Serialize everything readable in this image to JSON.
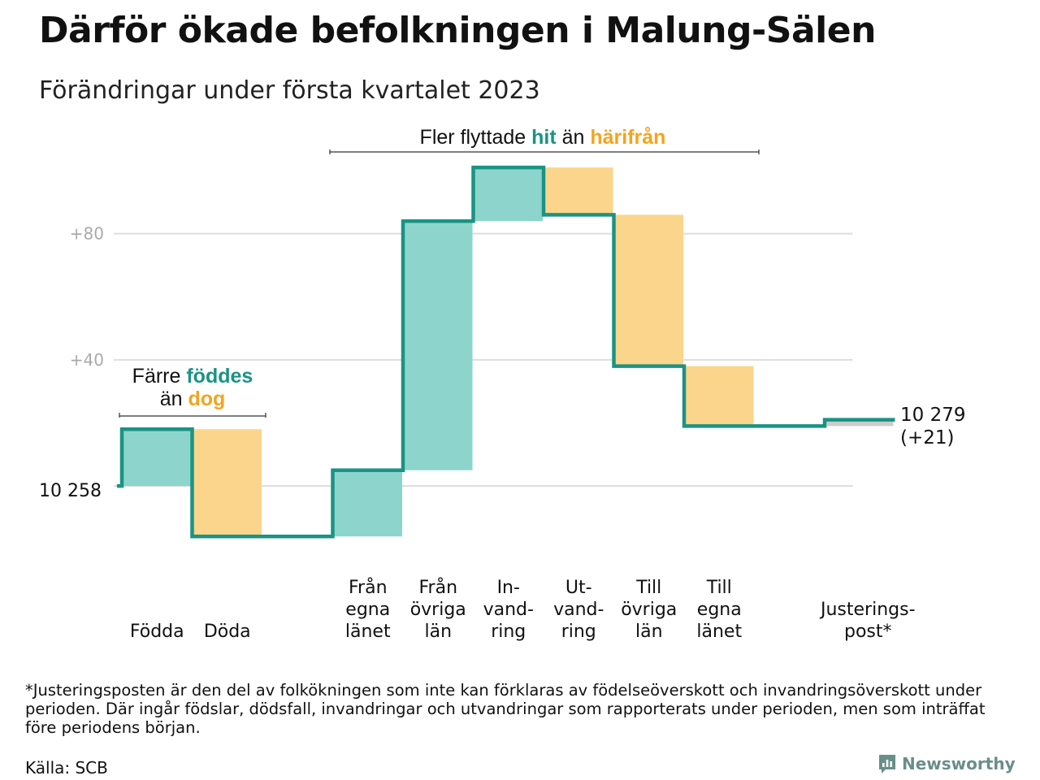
{
  "header": {
    "title": "Därför ökade befolkningen i Malung-Sälen",
    "subtitle": "Förändringar under första kvartalet 2023"
  },
  "annotations": {
    "births_deaths": {
      "line1_before": "Färre ",
      "line1_hi": "föddes",
      "line2_before": "än ",
      "line2_hi": "dog"
    },
    "migration": {
      "before": "Fler flyttade ",
      "hi1": "hit",
      "mid": " än ",
      "hi2": "härifrån"
    }
  },
  "labels": {
    "start": "10 258",
    "end_value": "10 279",
    "end_change": "(+21)"
  },
  "footnote": "*Justeringsposten är den del av folkökningen som inte kan förklaras av födelseöverskott och invandringsöverskott under perioden. Där ingår födslar, dödsfall, invandringar och utvandringar som rapporterats under perioden, men som inträffat före periodens början.",
  "source": "Källa: SCB",
  "brand": {
    "name": "Newsworthy",
    "icon": "newsworthy-logo-icon"
  },
  "colors": {
    "increase": "#8dd5cc",
    "decrease": "#fad58b",
    "adjustment": "#cccccc",
    "line": "#1a9384",
    "teal_text": "#1a9384",
    "orange_text": "#f4a41f",
    "grid": "#dddddd",
    "tick_text": "#aaaaaa"
  },
  "chart_data": {
    "type": "waterfall",
    "title": "Förändringar under första kvartalet 2023",
    "baseline": 10258,
    "end": 10279,
    "net_change": 21,
    "yticks": [
      {
        "value": 40,
        "label": "+40"
      },
      {
        "value": 80,
        "label": "+80"
      }
    ],
    "ylim": [
      -18,
      100
    ],
    "grid": true,
    "categories": [
      {
        "lines": [
          "Födda"
        ],
        "value": 18,
        "kind": "increase"
      },
      {
        "lines": [
          "Döda"
        ],
        "value": -34,
        "kind": "decrease"
      },
      {
        "lines": [],
        "value": 0,
        "kind": "gap"
      },
      {
        "lines": [
          "Från",
          "egna",
          "länet"
        ],
        "value": 21,
        "kind": "increase"
      },
      {
        "lines": [
          "Från",
          "övriga",
          "län"
        ],
        "value": 79,
        "kind": "increase"
      },
      {
        "lines": [
          "In-",
          "vand-",
          "ring"
        ],
        "value": 17,
        "kind": "increase"
      },
      {
        "lines": [
          "Ut-",
          "vand-",
          "ring"
        ],
        "value": -15,
        "kind": "decrease"
      },
      {
        "lines": [
          "Till",
          "övriga",
          "län"
        ],
        "value": -48,
        "kind": "decrease"
      },
      {
        "lines": [
          "Till",
          "egna",
          "länet"
        ],
        "value": -19,
        "kind": "decrease"
      },
      {
        "lines": [],
        "value": 0,
        "kind": "gap"
      },
      {
        "lines": [
          "Justerings-",
          "post*"
        ],
        "value": 2,
        "kind": "adjustment"
      }
    ]
  }
}
